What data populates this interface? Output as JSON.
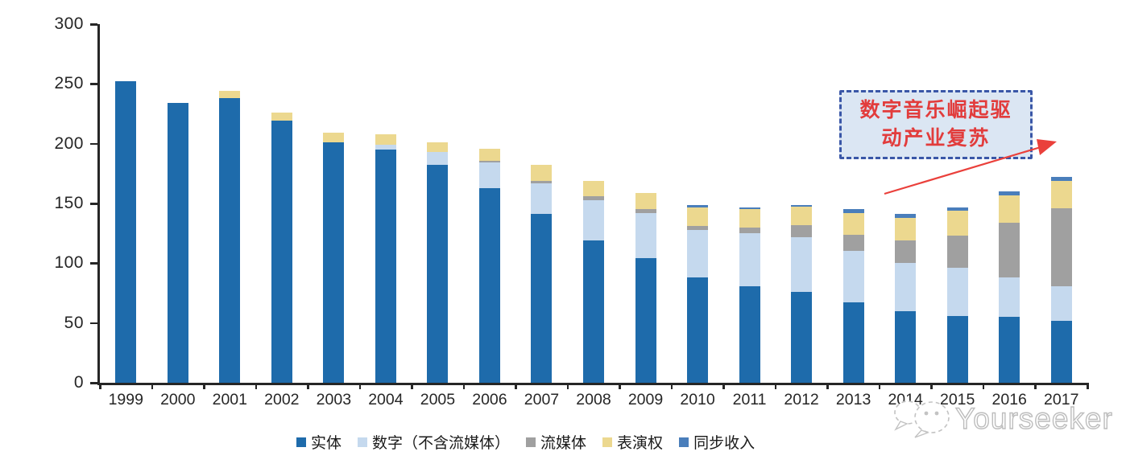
{
  "chart_data": {
    "type": "bar",
    "stacked": true,
    "title": "",
    "xlabel": "",
    "ylabel": "",
    "ylim": [
      0,
      300
    ],
    "yticks": [
      0,
      50,
      100,
      150,
      200,
      250,
      300
    ],
    "grid": false,
    "legend_position": "bottom",
    "categories": [
      "1999",
      "2000",
      "2001",
      "2002",
      "2003",
      "2004",
      "2005",
      "2006",
      "2007",
      "2008",
      "2009",
      "2010",
      "2011",
      "2012",
      "2013",
      "2014",
      "2015",
      "2016",
      "2017"
    ],
    "series": [
      {
        "key": "physical",
        "name": "实体",
        "color": "#1e6bab",
        "values": [
          252,
          234,
          238,
          219,
          201,
          195,
          182,
          163,
          141,
          119,
          104,
          88,
          81,
          76,
          67,
          60,
          56,
          55,
          52
        ]
      },
      {
        "key": "digital",
        "name": "数字（不含流媒体）",
        "color": "#c5d9ee",
        "values": [
          0,
          0,
          0,
          0,
          0,
          4,
          11,
          21,
          26,
          34,
          38,
          40,
          44,
          46,
          43,
          40,
          40,
          33,
          29
        ]
      },
      {
        "key": "streaming",
        "name": "流媒体",
        "color": "#a0a0a0",
        "values": [
          0,
          0,
          0,
          0,
          0,
          0,
          0,
          2,
          2,
          3,
          3,
          3,
          5,
          10,
          14,
          19,
          27,
          46,
          65
        ]
      },
      {
        "key": "performance",
        "name": "表演权",
        "color": "#ecd88f",
        "values": [
          0,
          0,
          6,
          7,
          8,
          9,
          8,
          10,
          13,
          13,
          14,
          16,
          15,
          15,
          18,
          19,
          21,
          23,
          23
        ]
      },
      {
        "key": "sync",
        "name": "同步收入",
        "color": "#4a7ebb",
        "values": [
          0,
          0,
          0,
          0,
          0,
          0,
          0,
          0,
          0,
          0,
          0,
          2,
          2,
          2,
          3,
          3,
          3,
          3,
          3
        ]
      }
    ]
  },
  "annotation": {
    "lines": [
      "数字音乐崛起驱",
      "动产业复苏"
    ],
    "text_color": "#e23c3c",
    "box_fill": "#dbe6f3",
    "border_color": "#3a57a7",
    "arrow_color": "#ea403b"
  },
  "axis": {
    "color": "#262626"
  },
  "watermark": {
    "text": "Yourseeker",
    "color": "#c3c3c3"
  }
}
